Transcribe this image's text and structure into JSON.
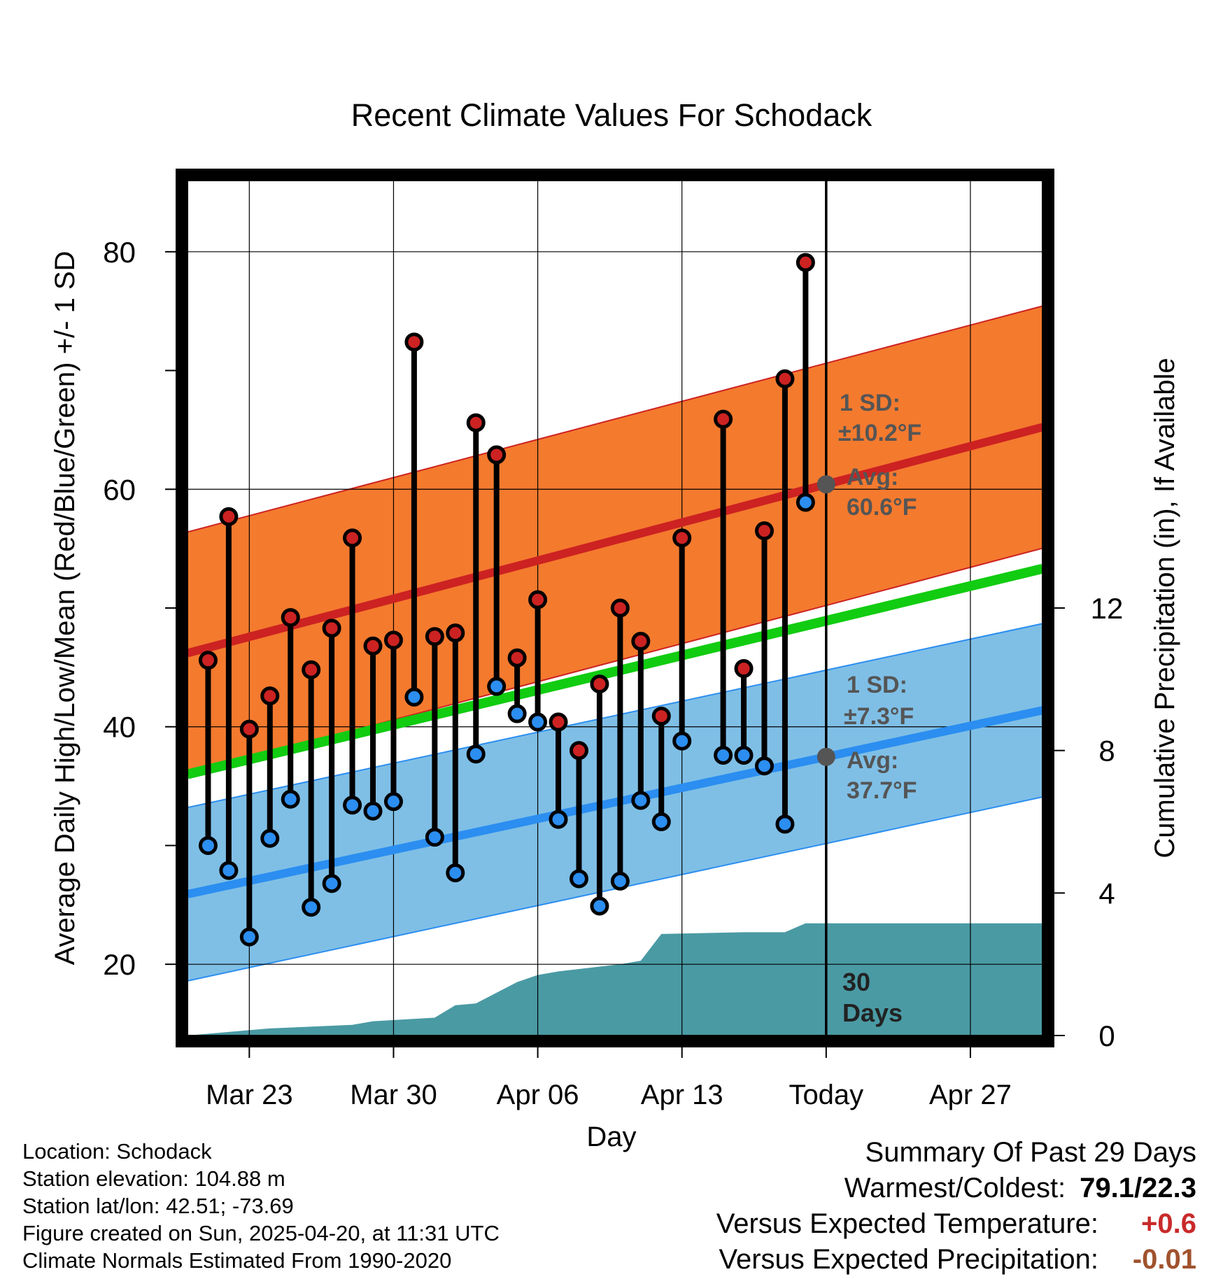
{
  "chart_data": {
    "type": "line",
    "title": "Recent Climate Values For Schodack",
    "xlabel": "Day",
    "ylabel": "Average Daily High/Low/Mean (Red/Blue/Green) +/- 1 SD",
    "y2label": "Cumulative Precipitation (in), If Available",
    "ylim": [
      14,
      86
    ],
    "y2lim": [
      0,
      24
    ],
    "yticks": [
      20,
      40,
      60,
      80
    ],
    "y2ticks": [
      0,
      4,
      8,
      12
    ],
    "xlim": [
      "Mar 20",
      "Apr 30"
    ],
    "xticks": [
      {
        "date": "2025-03-23",
        "label": "Mar 23"
      },
      {
        "date": "2025-03-30",
        "label": "Mar 30"
      },
      {
        "date": "2025-04-06",
        "label": "Apr 06"
      },
      {
        "date": "2025-04-13",
        "label": "Apr 13"
      },
      {
        "date": "2025-04-20",
        "label": "Today"
      },
      {
        "date": "2025-04-27",
        "label": "Apr 27"
      }
    ],
    "grid": true,
    "today": "2025-04-20",
    "colors": {
      "high": "#cc2222",
      "low": "#2b8ef0",
      "mean": "#11cc11",
      "high_band": "#f47a2e",
      "low_band": "#7fbfe6",
      "precip": "#4a9aa4",
      "annotation": "#555555"
    },
    "normals": {
      "dates": [
        "2025-03-20",
        "2025-04-30"
      ],
      "high_avg": [
        46.2,
        65.0
      ],
      "high_sd": 10.2,
      "low_avg": [
        25.9,
        41.2
      ],
      "low_sd": 7.3,
      "mean_avg": [
        36.0,
        53.1
      ]
    },
    "daily": {
      "dates": [
        "2025-03-21",
        "2025-03-22",
        "2025-03-23",
        "2025-03-24",
        "2025-03-25",
        "2025-03-26",
        "2025-03-27",
        "2025-03-28",
        "2025-03-29",
        "2025-03-30",
        "2025-03-31",
        "2025-04-01",
        "2025-04-02",
        "2025-04-03",
        "2025-04-04",
        "2025-04-05",
        "2025-04-06",
        "2025-04-07",
        "2025-04-08",
        "2025-04-09",
        "2025-04-10",
        "2025-04-11",
        "2025-04-12",
        "2025-04-13",
        "2025-04-15",
        "2025-04-16",
        "2025-04-17",
        "2025-04-18",
        "2025-04-19"
      ],
      "high": [
        45.6,
        57.7,
        39.8,
        42.6,
        49.2,
        44.8,
        48.3,
        55.9,
        46.8,
        47.3,
        72.4,
        47.6,
        47.9,
        65.6,
        62.9,
        45.8,
        50.7,
        40.4,
        38.0,
        43.6,
        50.0,
        47.2,
        40.9,
        55.9,
        65.9,
        44.9,
        56.5,
        69.3,
        79.1
      ],
      "low": [
        30.0,
        27.9,
        22.3,
        30.6,
        33.9,
        24.8,
        26.8,
        33.4,
        32.9,
        33.7,
        42.5,
        30.7,
        27.7,
        37.7,
        43.4,
        41.1,
        40.4,
        32.2,
        27.2,
        24.9,
        27.0,
        33.8,
        32.0,
        38.8,
        37.6,
        37.6,
        36.7,
        31.8,
        58.9
      ]
    },
    "precip": {
      "dates": [
        "2025-03-20",
        "2025-03-22",
        "2025-03-24",
        "2025-03-28",
        "2025-03-29",
        "2025-04-01",
        "2025-04-02",
        "2025-04-03",
        "2025-04-05",
        "2025-04-06",
        "2025-04-07",
        "2025-04-10",
        "2025-04-11",
        "2025-04-12",
        "2025-04-16",
        "2025-04-18",
        "2025-04-19",
        "2025-04-30"
      ],
      "values": [
        0.0,
        0.1,
        0.2,
        0.3,
        0.4,
        0.5,
        0.85,
        0.9,
        1.5,
        1.7,
        1.8,
        2.0,
        2.1,
        2.85,
        2.9,
        2.9,
        3.15,
        3.15
      ]
    },
    "annotations": {
      "high_sd_title": "1 SD:",
      "high_sd_value": "±10.2°F",
      "high_avg_title": "Avg:",
      "high_avg_value": "60.6°F",
      "low_sd_title": "1 SD:",
      "low_sd_value": "±7.3°F",
      "low_avg_title": "Avg:",
      "low_avg_value": "37.7°F",
      "days_line1": "30",
      "days_line2": "Days"
    }
  },
  "footer": {
    "location": "Location: Schodack",
    "elevation": "Station elevation: 104.88 m",
    "latlon": "Station lat/lon: 42.51; -73.69",
    "created": "Figure created on Sun, 2025-04-20, at 11:31 UTC",
    "normals_period": "Climate Normals Estimated From 1990-2020"
  },
  "summary": {
    "heading": "Summary Of Past 29 Days",
    "warmest_coldest_label": "Warmest/Coldest:",
    "warmest_coldest_value": "79.1/22.3",
    "temp_label": "Versus Expected Temperature:",
    "temp_value": "+0.6",
    "temp_color": "#c92a2a",
    "precip_label": "Versus Expected Precipitation:",
    "precip_value": "-0.01",
    "precip_color": "#a0522d"
  }
}
